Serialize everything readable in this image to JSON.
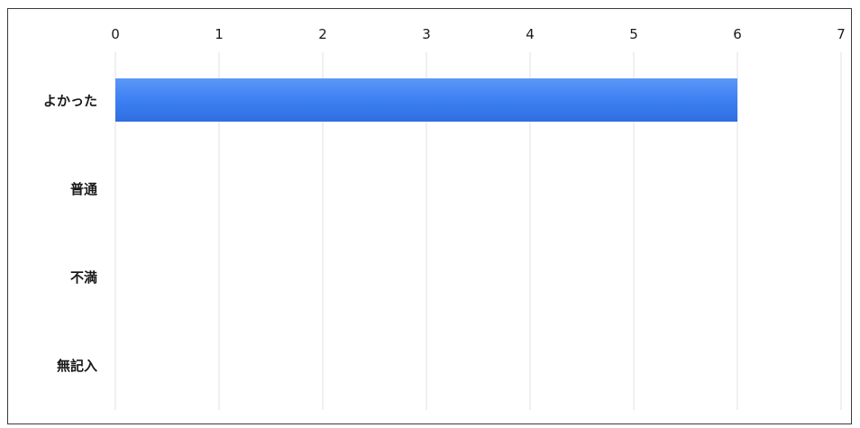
{
  "chart_data": {
    "type": "bar",
    "orientation": "horizontal",
    "categories": [
      "よかった",
      "普通",
      "不満",
      "無記入"
    ],
    "values": [
      6,
      0,
      0,
      0
    ],
    "xlim": [
      0,
      7
    ],
    "x_ticks": [
      "0",
      "1",
      "2",
      "3",
      "4",
      "5",
      "6",
      "7"
    ],
    "x_axis_position": "top",
    "grid": true,
    "legend": "none",
    "bar_color": "#3f7ff0",
    "title": "",
    "xlabel": "",
    "ylabel": ""
  }
}
